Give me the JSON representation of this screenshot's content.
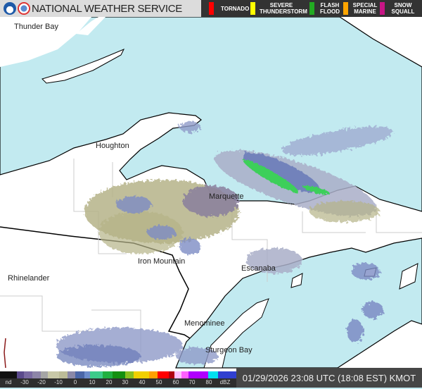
{
  "header": {
    "title": "NATIONAL WEATHER SERVICE",
    "legend": [
      {
        "label": "TORNADO",
        "color": "#ff0000"
      },
      {
        "label": "SEVERE THUNDERSTORM",
        "color": "#ffff00"
      },
      {
        "label": "FLASH FLOOD",
        "color": "#22aa22"
      },
      {
        "label": "SPECIAL MARINE",
        "color": "#ffa500"
      },
      {
        "label": "SNOW SQUALL",
        "color": "#c71585"
      }
    ]
  },
  "map": {
    "cities": [
      "Thunder Bay",
      "Houghton",
      "Marquette",
      "Iron Mountain",
      "Escanaba",
      "Rhinelander",
      "Menominee",
      "Sturgeon Bay"
    ],
    "colors": {
      "water": "#c2eaf0",
      "land": "#ffffff"
    }
  },
  "footer": {
    "scale_labels": [
      "nd",
      "-30",
      "-20",
      "-10",
      "0",
      "10",
      "20",
      "30",
      "40",
      "50",
      "60",
      "70",
      "80",
      "dBZ"
    ],
    "timestamp": "01/29/2026 23:08 UTC (18:08 EST) KMOT"
  }
}
